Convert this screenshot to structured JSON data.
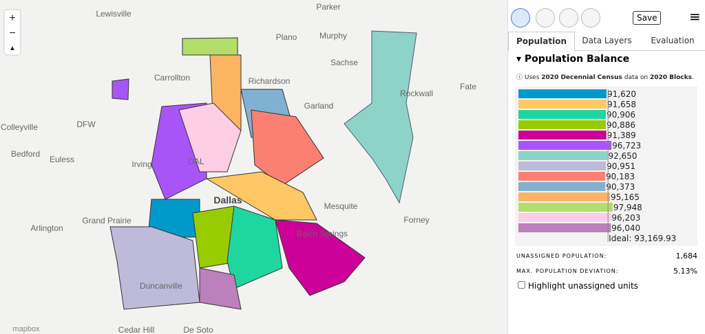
{
  "map": {
    "zoom_in": "+",
    "zoom_out": "−",
    "compass": "▲",
    "attribution": "mapbox",
    "places": [
      {
        "label": "Lewisville"
      },
      {
        "label": "Parker"
      },
      {
        "label": "Plano"
      },
      {
        "label": "Murphy"
      },
      {
        "label": "Sachse"
      },
      {
        "label": "Carrollton"
      },
      {
        "label": "Richardson"
      },
      {
        "label": "Garland"
      },
      {
        "label": "Rockwall"
      },
      {
        "label": "Fate"
      },
      {
        "label": "Colleyville"
      },
      {
        "label": "DFW"
      },
      {
        "label": "Bedford"
      },
      {
        "label": "Euless"
      },
      {
        "label": "Irving"
      },
      {
        "label": "DAL"
      },
      {
        "label": "Dallas"
      },
      {
        "label": "Mesquite"
      },
      {
        "label": "Arlington"
      },
      {
        "label": "Grand Prairie"
      },
      {
        "label": "Forney"
      },
      {
        "label": "Balch Springs"
      },
      {
        "label": "Duncanville"
      },
      {
        "label": "Cedar Hill"
      },
      {
        "label": "De Soto"
      }
    ]
  },
  "toolbar": {
    "save": "Save",
    "menu": "≡"
  },
  "tabs": [
    "Population",
    "Data Layers",
    "Evaluation"
  ],
  "panel": {
    "heading": "Population Balance",
    "note": {
      "icon": "ⓘ",
      "t1": "Uses",
      "b1": "2020 Decennial Census",
      "t2": "data on",
      "b2": "2020 Blocks",
      "t3": "."
    },
    "population_chart": {
      "values": [
        91620,
        91658,
        90906,
        90886,
        91389,
        96723,
        92650,
        90951,
        90183,
        90373,
        95165,
        97948,
        96203,
        96040
      ],
      "value_labels": [
        "91,620",
        "91,658",
        "90,906",
        "90,886",
        "91,389",
        "96,723",
        "92,650",
        "90,951",
        "90,183",
        "90,373",
        "95,165",
        "97,948",
        "96,203",
        "96,040"
      ],
      "colors": [
        "#0099cc",
        "#ffc864",
        "#1fd6a0",
        "#99cc00",
        "#cc0099",
        "#a855f7",
        "#8dd3c7",
        "#bebada",
        "#fb8072",
        "#80b1d3",
        "#fdb462",
        "#b3de69",
        "#fccde5",
        "#bc80bd"
      ],
      "ideal": 93169.93,
      "ideal_label": "Ideal: 93,169.93"
    },
    "unassigned_label": "UNASSIGNED POPULATION:",
    "unassigned_value": "1,684",
    "deviation_label": "MAX. POPULATION DEVIATION:",
    "deviation_value": "5.13%",
    "checkbox_label": "Highlight unassigned units"
  }
}
